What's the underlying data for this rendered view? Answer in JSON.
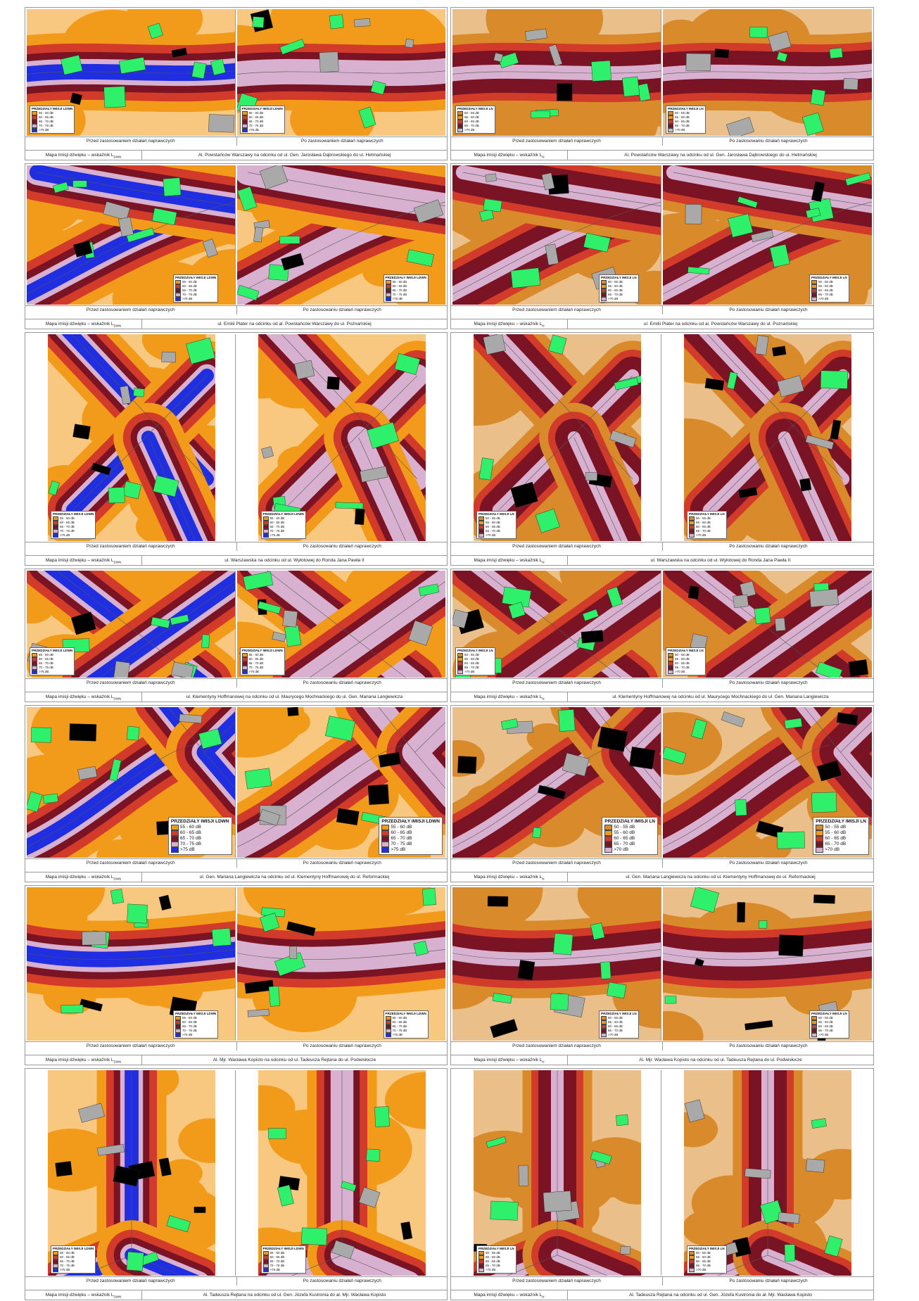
{
  "colors": {
    "band_1": "#f29a1a",
    "band_2": "#d98a2a",
    "band_3": "#d23a2a",
    "band_4": "#7a1424",
    "band_5": "#d9b1d0",
    "band_6": "#1f2ee0",
    "building_residential": "#2ff06a",
    "building_other": "#a9a9a9",
    "building_black": "#000000",
    "road_line": "#555555"
  },
  "common": {
    "before_label": "Przed zastosowaniem działań naprawczych",
    "after_label": "Po zastosowaniu działań naprawczych",
    "index_lden": "Mapa imisji dźwięku – wskaźnik L",
    "index_lden_sub": "DWN",
    "index_ln": "Mapa imisji dźwięku – wskaźnik L",
    "index_ln_sub": "N"
  },
  "legend": {
    "lden_title": "PRZEDZIAŁY IMISJI LDWN",
    "lden_items": [
      "55 - 60 dB",
      "60 - 65 dB",
      "65 - 70 dB",
      "70 - 75 dB",
      ">75 dB"
    ],
    "ln_title": "PRZEDZIAŁY IMISJI LN",
    "ln_items": [
      "50 - 55 dB",
      "55 - 60 dB",
      "60 - 65 dB",
      "65 - 70 dB",
      ">70 dB"
    ]
  },
  "sections": [
    {
      "left_before": "Przed zastosowaniem działań naprawczych",
      "left_after": "Po zastosowaniem działań naprawczych",
      "left_desc": "Al. Powstańców Warszawy na odcinku od ul. Gen. Jarosława Dąbrowskiego do ul. Hetmańskiej",
      "right_before": "Przed zastosowaniem działań naprawczych",
      "right_after": "Po zastosowaniu działań naprawczych",
      "right_desc": "Al. Powstańców Warszawy na odcinku od ul. Gen. Jarosława Dąbrowskiego do ul. Hetmańskiej"
    },
    {
      "left_before": "Przed zastosowaniem działań naprawczych",
      "left_after": "Po zastosowaniu działań naprawczych",
      "left_desc": "ul. Emilii Plater na odcinku od al. Powstańców Warszawy do ul. Poznańskiej",
      "right_before": "Przed zastosowaniem działań naprawczych",
      "right_after": "Po zastosowaniu działań naprawczych",
      "right_desc": "ul. Emilii Plater na odcinku od al. Powstańców Warszawy do ul. Poznańskiej"
    },
    {
      "left_before": "Przed zastosowaniem działań naprawczych",
      "left_after": "Po zastosowaniu działań naprawczych",
      "left_desc": "ul. Warszawska na odcinku od ul. Wyłotowej do Ronda Jana Pawła II",
      "right_before": "Przed zastosowaniem działań naprawczych",
      "right_after": "Po zastosowaniu działań naprawczych",
      "right_desc": "ul. Warszawska na odcinku od ul. Wyłotowej do Ronda Jana Pawła II"
    },
    {
      "left_before": "Przed zastosowaniem działań naprawczych",
      "left_after": "Po zastosowaniu działań naprawczych",
      "left_desc": "ul. Klementyny Hoffmanowej na odcinku od ul. Maurycego Mochnackiego do ul. Gen. Mariana Langiewicza",
      "right_before": "Przed zastosowaniem działań naprawczych",
      "right_after": "Po zastosowaniu działań naprawczych",
      "right_desc": "ul. Klementyny Hoffmanowej na odcinku od ul. Maurycego Mochnackiego do ul. Gen. Mariana Langiewicza"
    },
    {
      "left_before": "Przed zastosowaniem działań naprawczych",
      "left_after": "Po zastosowaniu działań naprawczych",
      "left_desc": "ul. Gen. Mariana Langiewicza na odcinku od ul. Klementyny Hoffmanowej do ul. Reformackiej",
      "right_before": "Przed zastosowaniem działań naprawczych",
      "right_after": "Po zastosowaniu działań naprawczych",
      "right_desc": "ul. Gen. Mariana Langiewicza na odcinku od ul. Klementyny Hoffmanowej do ul. Reformackiej"
    },
    {
      "left_before": "Przed zastosowaniem działań naprawczych",
      "left_after": "Po zastosowaniu działań naprawczych",
      "left_desc": "Al. Mjr. Wacława Kopisto na odcinku od ul. Tadeusza Rejtana do ul. Podwisłocze",
      "right_before": "Przed zastosowaniem działań naprawczych",
      "right_after": "Po zastosowaniu działań naprawczych",
      "right_desc": "Al. Mjr. Wacława Kopisto na odcinku od ul. Tadeusza Rejtana do ul. Podwisłocze"
    },
    {
      "left_before": "Przed zastosowaniem działań naprawczych",
      "left_after": "Po zastosowaniu działań naprawczych",
      "left_desc": "Al. Tadeusza Rejtana na odcinku od ul. Gen. Józefa Kustronia do al. Mjr. Wacława Kopisto",
      "right_before": "Przed zastosowaniem działań naprawczych",
      "right_after": "Po zastosowaniu działań naprawczych",
      "right_desc": "Al. Tadeusza Rejtana na odcinku od ul. Gen. Józefa Kustronia do al. Mjr. Wacława Kopisto"
    }
  ]
}
